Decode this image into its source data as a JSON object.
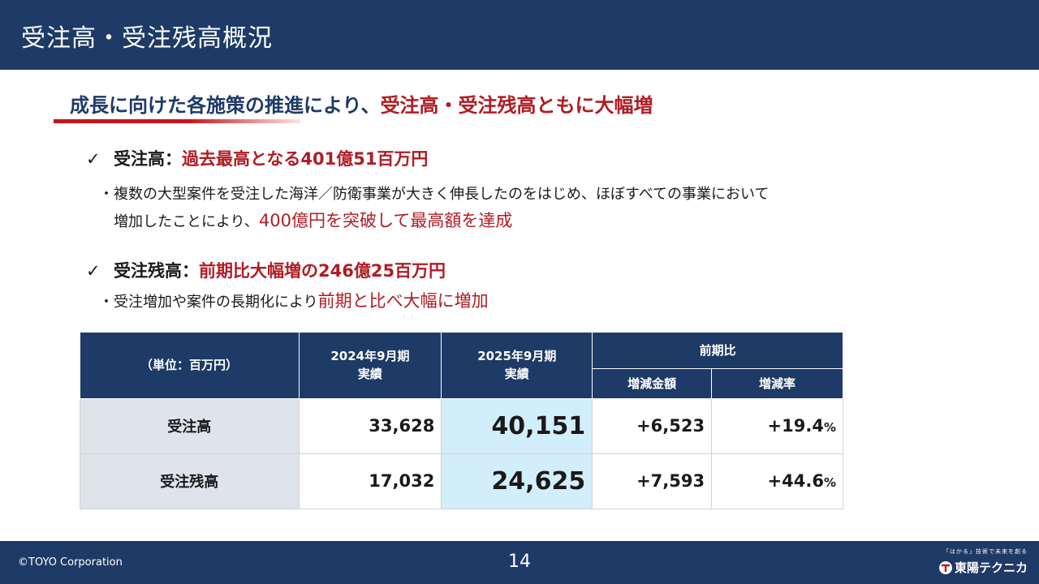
{
  "header": {
    "title": "受注高・受注残高概況"
  },
  "headline": {
    "part1": "成長に向けた各施策の推進により、",
    "part2": "受注高・受注残高ともに大幅増"
  },
  "points": [
    {
      "check": "✓",
      "label": "受注高：",
      "value": "過去最高となる401億51百万円",
      "line1": "・複数の大型案件を受注した海洋／防衛事業が大きく伸長したのをはじめ、ほぼすべての事業において",
      "line2_plain": "増加したことにより、",
      "line2_emph": "400億円を突破して最高額を達成"
    },
    {
      "check": "✓",
      "label": "受注残高：",
      "value": "前期比大幅増の246億25百万円",
      "line1_plain": "・受注増加や案件の長期化により",
      "line1_emph": "前期と比べ大幅に増加"
    }
  ],
  "table": {
    "unit_label": "（単位：百万円）",
    "col_fy2024_line1": "2024年9月期",
    "col_fy2024_line2": "実績",
    "col_fy2025_line1": "2025年9月期",
    "col_fy2025_line2": "実績",
    "col_yoy": "前期比",
    "col_change": "増減金額",
    "col_rate": "増減率",
    "rows": [
      {
        "name": "受注高",
        "fy2024": "33,628",
        "fy2025": "40,151",
        "change": "+6,523",
        "rate": "+19.4",
        "unit": "%"
      },
      {
        "name": "受注残高",
        "fy2024": "17,032",
        "fy2025": "24,625",
        "change": "+7,593",
        "rate": "+44.6",
        "unit": "%"
      }
    ]
  },
  "footer": {
    "copyright": "©TOYO Corporation",
    "page": "14",
    "logo_tagline": "「はかる」技術で未来を創る",
    "logo_name": "東陽テクニカ"
  },
  "colors": {
    "navy": "#1e3a66",
    "accent_red": "#b01c24",
    "highlight": "#d3eefb",
    "row_head": "#dfe3ea"
  }
}
